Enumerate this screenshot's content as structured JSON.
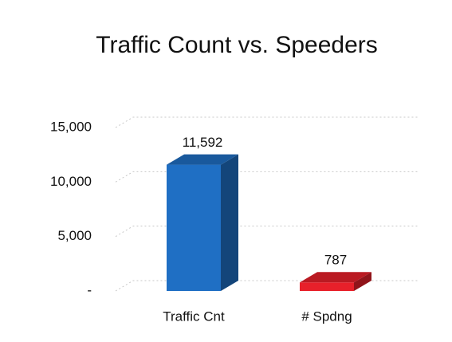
{
  "chart_data": {
    "type": "bar3d",
    "title": "Traffic Count vs. Speeders",
    "categories": [
      "Traffic Cnt",
      "# Spdng"
    ],
    "values": [
      11592,
      787
    ],
    "value_labels": [
      "11,592",
      "787"
    ],
    "colors": [
      "#1f6fc4",
      "#e8202a"
    ],
    "ylim": [
      0,
      15000
    ],
    "yticks": [
      {
        "value": 0,
        "label": "-"
      },
      {
        "value": 5000,
        "label": "5,000"
      },
      {
        "value": 10000,
        "label": "10,000"
      },
      {
        "value": 15000,
        "label": "15,000"
      }
    ],
    "grid": true
  }
}
